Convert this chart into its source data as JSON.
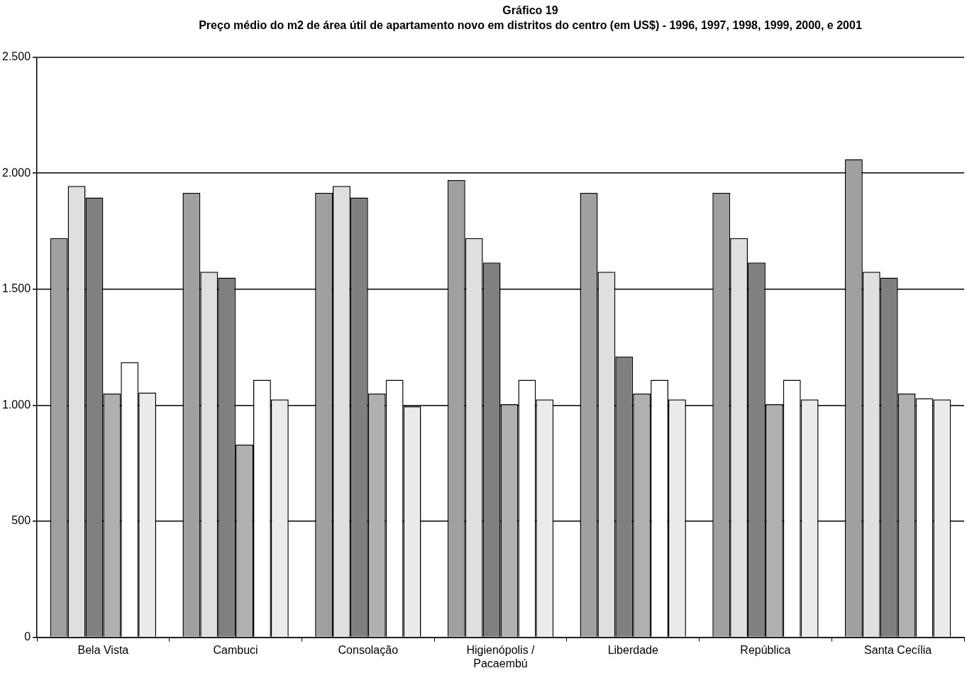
{
  "chart_data": {
    "type": "bar",
    "title": "Gráfico 19",
    "subtitle": "Preço médio do m2 de área útil de apartamento novo em distritos do centro (em US$) - 1996, 1997, 1998, 1999, 2000, e 2001",
    "categories": [
      "Bela Vista",
      "Cambuci",
      "Consolação",
      "Higienópolis / Pacaembú",
      "Liberdade",
      "República",
      "Santa Cecília"
    ],
    "series": [
      {
        "color": "#a0a0a0",
        "values": [
          1720,
          1915,
          1915,
          1970,
          1915,
          1915,
          2060
        ]
      },
      {
        "color": "#dfdfdf",
        "values": [
          1945,
          1575,
          1945,
          1720,
          1575,
          1720,
          1575
        ]
      },
      {
        "color": "#808080",
        "values": [
          1895,
          1550,
          1895,
          1615,
          1210,
          1615,
          1550
        ]
      },
      {
        "color": "#b0b0b0",
        "values": [
          1050,
          830,
          1050,
          1005,
          1050,
          1005,
          1050
        ]
      },
      {
        "color": "#ffffff",
        "values": [
          1185,
          1110,
          1110,
          1110,
          1110,
          1110,
          1030
        ]
      },
      {
        "color": "#ebebeb",
        "values": [
          1055,
          1025,
          995,
          1025,
          1025,
          1025,
          1025
        ]
      }
    ],
    "ylim": [
      0,
      2500
    ],
    "yticks": [
      {
        "value": 0,
        "label": "0"
      },
      {
        "value": 500,
        "label": "500"
      },
      {
        "value": 1000,
        "label": "1.000"
      },
      {
        "value": 1500,
        "label": "1.500"
      },
      {
        "value": 2000,
        "label": "2.000"
      },
      {
        "value": 2500,
        "label": "2.500"
      }
    ],
    "grid": "y",
    "legend": false
  }
}
